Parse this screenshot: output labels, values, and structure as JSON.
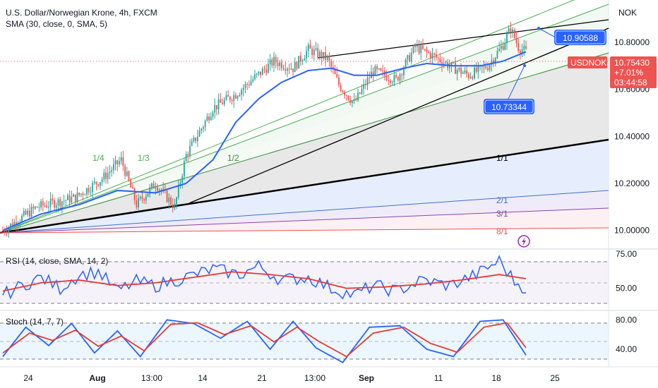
{
  "header": {
    "title": "U.S. Dollar/Norwegian Krone, 4h, FXCM",
    "sma_label": "SMA (30, close, 0, SMA, 5)",
    "currency": "NOK"
  },
  "colors": {
    "up": "#26a69a",
    "down": "#ef5350",
    "sma": "#2962ff",
    "rsi": "#2962ff",
    "rsi_ma": "#e53935",
    "stoch_k": "#2962ff",
    "stoch_d": "#e53935",
    "price_badge": "#ef5350",
    "callout": "#2962ff"
  },
  "price_badge": {
    "symbol": "USDNOK",
    "price": "10.75430",
    "change": "+7.01%",
    "countdown": "03:44:58"
  },
  "callouts": [
    {
      "value": "10.90588",
      "price": 10.9059
    },
    {
      "value": "10.73344",
      "price": 10.7334
    }
  ],
  "chart_data": [
    {
      "type": "candlestick",
      "title": "U.S. Dollar/Norwegian Krone, 4h, FXCM",
      "ylim": [
        9.93,
        10.98
      ],
      "y_ticks": [
        "10.80000",
        "10.60000",
        "10.40000",
        "10.20000",
        "10.00000"
      ],
      "x_ticks": [
        "24",
        "Aug",
        "13:00",
        "14",
        "21",
        "13:00",
        "Sep",
        "11",
        "18",
        "25"
      ],
      "series": [
        {
          "name": "price",
          "anchors": [
            [
              0,
              10.0
            ],
            [
              18,
              10.1
            ],
            [
              38,
              10.14
            ],
            [
              52,
              10.22
            ],
            [
              62,
              10.3
            ],
            [
              70,
              10.11
            ],
            [
              80,
              10.2
            ],
            [
              90,
              10.1
            ],
            [
              96,
              10.32
            ],
            [
              110,
              10.52
            ],
            [
              122,
              10.58
            ],
            [
              132,
              10.65
            ],
            [
              142,
              10.72
            ],
            [
              152,
              10.69
            ],
            [
              160,
              10.77
            ],
            [
              170,
              10.73
            ],
            [
              176,
              10.62
            ],
            [
              184,
              10.54
            ],
            [
              194,
              10.68
            ],
            [
              206,
              10.64
            ],
            [
              216,
              10.78
            ],
            [
              226,
              10.74
            ],
            [
              234,
              10.7
            ],
            [
              244,
              10.66
            ],
            [
              254,
              10.7
            ],
            [
              262,
              10.79
            ],
            [
              266,
              10.86
            ],
            [
              270,
              10.78
            ],
            [
              274,
              10.76
            ]
          ]
        },
        {
          "name": "SMA 30",
          "anchors": [
            [
              0,
              10.0
            ],
            [
              20,
              10.07
            ],
            [
              40,
              10.11
            ],
            [
              60,
              10.17
            ],
            [
              80,
              10.16
            ],
            [
              96,
              10.2
            ],
            [
              110,
              10.3
            ],
            [
              122,
              10.46
            ],
            [
              134,
              10.56
            ],
            [
              146,
              10.63
            ],
            [
              160,
              10.68
            ],
            [
              172,
              10.69
            ],
            [
              184,
              10.66
            ],
            [
              196,
              10.66
            ],
            [
              210,
              10.69
            ],
            [
              222,
              10.71
            ],
            [
              236,
              10.7
            ],
            [
              250,
              10.7
            ],
            [
              262,
              10.72
            ],
            [
              274,
              10.76
            ]
          ]
        }
      ],
      "annotations": {
        "fan_labels": [
          "1/4",
          "1/3",
          "1/2",
          "1/1",
          "2/1",
          "3/1",
          "8/1"
        ]
      }
    },
    {
      "type": "line",
      "title": "RSI (14, close, SMA, 14, 2)",
      "ylim": [
        35,
        77
      ],
      "y_ticks": [
        "75.00",
        "50.00"
      ],
      "levels": [
        70,
        50,
        30
      ],
      "series": [
        {
          "name": "RSI",
          "anchors": [
            [
              0,
              45
            ],
            [
              10,
              52
            ],
            [
              20,
              58
            ],
            [
              30,
              50
            ],
            [
              40,
              60
            ],
            [
              50,
              62
            ],
            [
              60,
              48
            ],
            [
              70,
              55
            ],
            [
              80,
              52
            ],
            [
              96,
              58
            ],
            [
              110,
              64
            ],
            [
              124,
              60
            ],
            [
              134,
              66
            ],
            [
              146,
              56
            ],
            [
              160,
              58
            ],
            [
              172,
              50
            ],
            [
              184,
              45
            ],
            [
              194,
              52
            ],
            [
              206,
              48
            ],
            [
              220,
              56
            ],
            [
              234,
              52
            ],
            [
              248,
              60
            ],
            [
              260,
              70
            ],
            [
              268,
              55
            ],
            [
              274,
              50
            ]
          ]
        },
        {
          "name": "RSI MA",
          "anchors": [
            [
              0,
              48
            ],
            [
              20,
              54
            ],
            [
              40,
              56
            ],
            [
              60,
              52
            ],
            [
              80,
              54
            ],
            [
              100,
              58
            ],
            [
              120,
              62
            ],
            [
              140,
              60
            ],
            [
              160,
              57
            ],
            [
              180,
              50
            ],
            [
              200,
              51
            ],
            [
              220,
              53
            ],
            [
              240,
              56
            ],
            [
              260,
              60
            ],
            [
              274,
              57
            ]
          ]
        }
      ]
    },
    {
      "type": "line",
      "title": "Stoch (14, 7, 7)",
      "ylim": [
        18,
        90
      ],
      "y_ticks": [
        "80.00",
        "40.00"
      ],
      "levels": [
        80,
        50,
        20
      ],
      "series": [
        {
          "name": "%K",
          "anchors": [
            [
              0,
              30
            ],
            [
              12,
              70
            ],
            [
              24,
              45
            ],
            [
              36,
              75
            ],
            [
              48,
              35
            ],
            [
              60,
              65
            ],
            [
              72,
              30
            ],
            [
              86,
              80
            ],
            [
              100,
              75
            ],
            [
              114,
              55
            ],
            [
              128,
              78
            ],
            [
              140,
              40
            ],
            [
              152,
              78
            ],
            [
              164,
              42
            ],
            [
              178,
              22
            ],
            [
              192,
              70
            ],
            [
              208,
              72
            ],
            [
              222,
              40
            ],
            [
              236,
              30
            ],
            [
              250,
              78
            ],
            [
              262,
              80
            ],
            [
              274,
              32
            ]
          ]
        },
        {
          "name": "%D",
          "anchors": [
            [
              0,
              35
            ],
            [
              14,
              62
            ],
            [
              26,
              52
            ],
            [
              38,
              66
            ],
            [
              50,
              44
            ],
            [
              62,
              58
            ],
            [
              74,
              38
            ],
            [
              88,
              74
            ],
            [
              102,
              76
            ],
            [
              116,
              60
            ],
            [
              130,
              72
            ],
            [
              142,
              50
            ],
            [
              154,
              70
            ],
            [
              166,
              50
            ],
            [
              180,
              30
            ],
            [
              194,
              62
            ],
            [
              210,
              70
            ],
            [
              224,
              48
            ],
            [
              238,
              36
            ],
            [
              252,
              70
            ],
            [
              264,
              76
            ],
            [
              274,
              42
            ]
          ]
        }
      ]
    }
  ]
}
